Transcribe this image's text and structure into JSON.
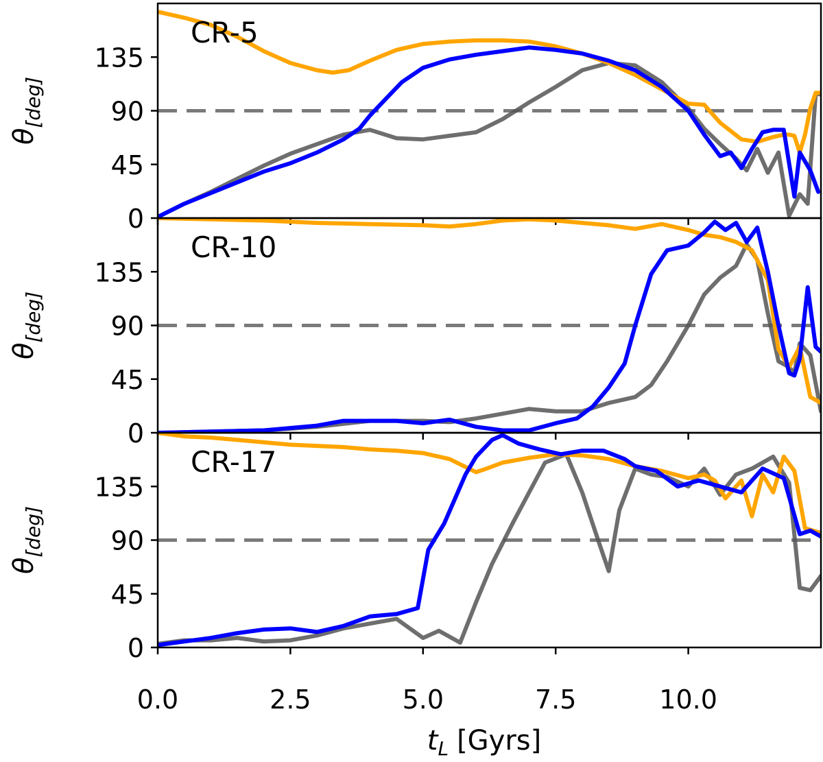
{
  "chart_data": {
    "type": "line",
    "xlabel": "t_L [Gyrs]",
    "xlabel_main": "t",
    "xlabel_sub": "L",
    "xlabel_units": "[Gyrs]",
    "ylabel": "θ[deg]",
    "ylabel_main": "θ",
    "ylabel_sub": "[deg]",
    "xlim": [
      0,
      12.5
    ],
    "ylim": [
      0,
      180
    ],
    "xticks": [
      0.0,
      2.5,
      5.0,
      7.5,
      10.0
    ],
    "xtick_labels": [
      "0.0",
      "2.5",
      "5.0",
      "7.5",
      "10.0"
    ],
    "yticks": [
      0,
      45,
      90,
      135
    ],
    "ytick_labels": [
      "0",
      "45",
      "90",
      "135"
    ],
    "reference_line": {
      "y": 90,
      "style": "dashed",
      "color": "#7a7a7a"
    },
    "panels": [
      {
        "label": "CR-5",
        "series": [
          {
            "name": "orange",
            "color": "#ffa500",
            "x": [
              0,
              0.5,
              1.0,
              1.5,
              2.0,
              2.5,
              3.0,
              3.3,
              3.6,
              4.0,
              4.5,
              5.0,
              5.5,
              6.0,
              6.5,
              7.0,
              7.5,
              8.0,
              8.5,
              9.0,
              9.5,
              10.0,
              10.3,
              10.6,
              11.0,
              11.3,
              11.6,
              11.8,
              11.9,
              12.0,
              12.1,
              12.2,
              12.3,
              12.4,
              12.5
            ],
            "y": [
              173,
              168,
              162,
              152,
              140,
              130,
              124,
              122,
              124,
              132,
              141,
              146,
              148,
              149,
              149,
              148,
              144,
              138,
              130,
              120,
              108,
              96,
              95,
              80,
              66,
              64,
              68,
              70,
              70,
              69,
              55,
              70,
              92,
              105,
              105
            ]
          },
          {
            "name": "blue",
            "color": "#0000ff",
            "x": [
              0,
              0.5,
              1.0,
              1.5,
              2.0,
              2.5,
              3.0,
              3.5,
              3.8,
              4.0,
              4.3,
              4.6,
              5.0,
              5.5,
              6.0,
              6.5,
              7.0,
              7.5,
              8.0,
              8.5,
              9.0,
              9.5,
              10.0,
              10.3,
              10.6,
              10.8,
              11.0,
              11.2,
              11.4,
              11.6,
              11.8,
              12.0,
              12.1,
              12.3,
              12.45
            ],
            "y": [
              1,
              12,
              21,
              30,
              39,
              46,
              55,
              66,
              75,
              86,
              100,
              114,
              126,
              133,
              137,
              140,
              143,
              141,
              138,
              132,
              124,
              110,
              90,
              70,
              52,
              55,
              42,
              58,
              72,
              74,
              74,
              18,
              55,
              40,
              22
            ]
          },
          {
            "name": "gray",
            "color": "#555555",
            "opacity": 0.85,
            "x": [
              0,
              0.5,
              1.0,
              1.5,
              2.0,
              2.5,
              3.0,
              3.5,
              4.0,
              4.5,
              5.0,
              5.5,
              6.0,
              6.5,
              7.0,
              7.5,
              8.0,
              8.5,
              9.0,
              9.5,
              10.0,
              10.3,
              10.6,
              10.9,
              11.1,
              11.3,
              11.5,
              11.7,
              11.9,
              12.1,
              12.25,
              12.4,
              12.5
            ],
            "y": [
              1,
              12,
              22,
              33,
              44,
              54,
              62,
              70,
              74,
              67,
              66,
              69,
              72,
              83,
              97,
              110,
              124,
              130,
              128,
              114,
              92,
              75,
              62,
              50,
              40,
              58,
              38,
              55,
              2,
              20,
              12,
              104,
              104
            ]
          }
        ]
      },
      {
        "label": "CR-10",
        "series": [
          {
            "name": "orange",
            "color": "#ffa500",
            "x": [
              0,
              1.0,
              2.0,
              3.0,
              4.0,
              5.0,
              5.5,
              6.0,
              6.5,
              7.0,
              7.5,
              8.0,
              8.5,
              9.0,
              9.5,
              10.0,
              10.3,
              10.6,
              10.9,
              11.2,
              11.5,
              11.7,
              11.9,
              12.1,
              12.3,
              12.5
            ],
            "y": [
              180,
              179,
              178,
              176,
              175,
              174,
              173,
              175,
              178,
              179,
              178,
              176,
              174,
              171,
              175,
              170,
              166,
              164,
              160,
              153,
              128,
              70,
              55,
              72,
              30,
              25
            ]
          },
          {
            "name": "blue",
            "color": "#0000ff",
            "x": [
              0,
              1.0,
              2.0,
              3.0,
              3.5,
              4.0,
              4.5,
              5.0,
              5.5,
              6.0,
              6.5,
              7.0,
              7.5,
              7.9,
              8.2,
              8.5,
              8.8,
              9.0,
              9.3,
              9.6,
              10.0,
              10.3,
              10.5,
              10.7,
              10.9,
              11.1,
              11.3,
              11.5,
              11.7,
              11.9,
              12.0,
              12.1,
              12.25,
              12.4,
              12.5
            ],
            "y": [
              0,
              1,
              2,
              6,
              10,
              10,
              10,
              8,
              11,
              5,
              2,
              2,
              8,
              12,
              22,
              38,
              58,
              90,
              133,
              153,
              157,
              168,
              177,
              170,
              176,
              160,
              172,
              135,
              90,
              50,
              48,
              62,
              122,
              72,
              68
            ]
          },
          {
            "name": "gray",
            "color": "#555555",
            "opacity": 0.85,
            "x": [
              0,
              1.0,
              2.0,
              3.0,
              4.0,
              5.0,
              5.5,
              6.0,
              6.5,
              7.0,
              7.5,
              8.0,
              8.5,
              9.0,
              9.3,
              9.6,
              10.0,
              10.3,
              10.6,
              10.9,
              11.1,
              11.3,
              11.5,
              11.7,
              11.9,
              12.0,
              12.1,
              12.3,
              12.5
            ],
            "y": [
              0,
              1,
              2,
              5,
              10,
              10,
              9,
              12,
              16,
              20,
              18,
              18,
              25,
              30,
              40,
              60,
              90,
              116,
              130,
              140,
              158,
              145,
              100,
              60,
              55,
              50,
              75,
              65,
              18
            ]
          }
        ]
      },
      {
        "label": "CR-17",
        "series": [
          {
            "name": "orange",
            "color": "#ffa500",
            "x": [
              0,
              0.5,
              1.0,
              1.5,
              2.0,
              2.5,
              3.0,
              3.5,
              4.0,
              4.5,
              5.0,
              5.5,
              6.0,
              6.2,
              6.5,
              7.0,
              7.5,
              8.0,
              8.5,
              9.0,
              9.5,
              10.0,
              10.3,
              10.5,
              10.7,
              11.0,
              11.2,
              11.4,
              11.6,
              11.8,
              12.0,
              12.2,
              12.35,
              12.5
            ],
            "y": [
              180,
              177,
              176,
              174,
              172,
              170,
              169,
              168,
              166,
              165,
              163,
              158,
              147,
              150,
              155,
              159,
              162,
              161,
              158,
              152,
              148,
              142,
              145,
              140,
              125,
              140,
              110,
              145,
              130,
              160,
              148,
              100,
              98,
              96
            ]
          },
          {
            "name": "blue",
            "color": "#0000ff",
            "x": [
              0,
              0.5,
              1.0,
              1.5,
              2.0,
              2.5,
              3.0,
              3.5,
              4.0,
              4.5,
              4.9,
              5.1,
              5.4,
              5.8,
              6.0,
              6.3,
              6.5,
              6.8,
              7.2,
              7.6,
              8.0,
              8.4,
              8.8,
              9.0,
              9.4,
              9.8,
              10.2,
              10.6,
              11.0,
              11.4,
              11.8,
              12.1,
              12.3,
              12.5
            ],
            "y": [
              2,
              5,
              8,
              12,
              15,
              16,
              13,
              18,
              26,
              28,
              33,
              82,
              104,
              145,
              160,
              174,
              178,
              171,
              166,
              162,
              165,
              165,
              158,
              152,
              148,
              135,
              140,
              135,
              130,
              150,
              142,
              95,
              98,
              93
            ]
          },
          {
            "name": "gray",
            "color": "#555555",
            "opacity": 0.85,
            "x": [
              0,
              0.5,
              1.0,
              1.5,
              2.0,
              2.5,
              3.0,
              3.5,
              4.0,
              4.5,
              5.0,
              5.3,
              5.7,
              6.0,
              6.3,
              6.7,
              7.0,
              7.3,
              7.7,
              8.0,
              8.3,
              8.5,
              8.7,
              9.0,
              9.3,
              9.6,
              10.0,
              10.3,
              10.6,
              10.9,
              11.2,
              11.6,
              11.9,
              12.1,
              12.3,
              12.5
            ],
            "y": [
              3,
              6,
              6,
              8,
              5,
              6,
              10,
              16,
              20,
              24,
              8,
              14,
              4,
              38,
              70,
              105,
              130,
              155,
              162,
              130,
              90,
              64,
              115,
              150,
              145,
              143,
              135,
              150,
              128,
              145,
              150,
              160,
              138,
              50,
              48,
              60
            ]
          }
        ]
      }
    ]
  }
}
